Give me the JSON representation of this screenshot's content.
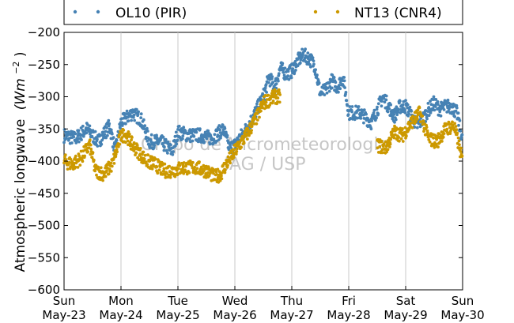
{
  "chart_data": {
    "type": "scatter",
    "ylabel": "Atmospheric longwave",
    "ylabel_unit": "(Wm",
    "ylabel_unit_exp": "−2",
    "ylabel_unit_close": ")",
    "ylim": [
      -600,
      -200
    ],
    "yticks": [
      -600,
      -550,
      -500,
      -450,
      -400,
      -350,
      -300,
      -250,
      -200
    ],
    "ytick_labels": [
      "−600",
      "−550",
      "−500",
      "−450",
      "−400",
      "−350",
      "−300",
      "−250",
      "−200"
    ],
    "xlim": [
      0,
      7
    ],
    "xticks": [
      {
        "x": 0,
        "day": "Sun",
        "date": "May-23"
      },
      {
        "x": 1,
        "day": "Mon",
        "date": "May-24"
      },
      {
        "x": 2,
        "day": "Tue",
        "date": "May-25"
      },
      {
        "x": 3,
        "day": "Wed",
        "date": "May-26"
      },
      {
        "x": 4,
        "day": "Thu",
        "date": "May-27"
      },
      {
        "x": 5,
        "day": "Fri",
        "date": "May-28"
      },
      {
        "x": 6,
        "day": "Sat",
        "date": "May-29"
      },
      {
        "x": 7,
        "day": "Sun",
        "date": "May-30"
      }
    ],
    "grid": "vertical",
    "legend_position": "top",
    "watermark": [
      "Grupo de Micrometeorologia",
      "IAG / USP"
    ],
    "series": [
      {
        "name": "OL10 (PIR)",
        "color": "#4682b4",
        "x": [
          0.0,
          0.2,
          0.4,
          0.6,
          0.8,
          0.9,
          1.0,
          1.2,
          1.35,
          1.5,
          1.7,
          1.9,
          2.0,
          2.2,
          2.4,
          2.6,
          2.8,
          2.9,
          3.0,
          3.2,
          3.3,
          3.5,
          3.6,
          3.7,
          3.8,
          3.9,
          4.0,
          4.1,
          4.2,
          4.3,
          4.4,
          4.5,
          4.6,
          4.7,
          4.8,
          4.9,
          5.0,
          5.2,
          5.4,
          5.6,
          5.8,
          5.9,
          6.0,
          6.2,
          6.3,
          6.4,
          6.5,
          6.6,
          6.7,
          6.8,
          6.9,
          7.0
        ],
        "y": [
          -360,
          -365,
          -350,
          -370,
          -345,
          -385,
          -340,
          -325,
          -335,
          -370,
          -370,
          -385,
          -355,
          -360,
          -360,
          -365,
          -350,
          -380,
          -375,
          -350,
          -335,
          -300,
          -270,
          -285,
          -255,
          -265,
          -260,
          -245,
          -235,
          -240,
          -250,
          -295,
          -290,
          -275,
          -285,
          -270,
          -325,
          -325,
          -340,
          -300,
          -330,
          -315,
          -315,
          -345,
          -335,
          -320,
          -310,
          -320,
          -315,
          -315,
          -325,
          -370
        ]
      },
      {
        "name": "NT13 (CNR4)",
        "color": "#cc9900",
        "x": [
          0.0,
          0.15,
          0.3,
          0.45,
          0.55,
          0.7,
          0.85,
          1.0,
          1.1,
          1.2,
          1.3,
          1.45,
          1.6,
          1.75,
          1.9,
          2.1,
          2.3,
          2.5,
          2.65,
          2.75,
          2.85,
          3.0,
          3.2,
          3.3,
          3.4,
          3.5,
          3.6,
          3.7,
          3.8,
          5.5,
          5.65,
          5.8,
          5.95,
          6.1,
          6.25,
          6.4,
          6.55,
          6.7,
          6.85,
          7.0
        ],
        "y": [
          -400,
          -405,
          -395,
          -375,
          -415,
          -420,
          -405,
          -360,
          -360,
          -375,
          -385,
          -400,
          -405,
          -415,
          -415,
          -410,
          -410,
          -415,
          -425,
          -420,
          -405,
          -385,
          -360,
          -345,
          -330,
          -310,
          -305,
          -300,
          -300,
          -375,
          -380,
          -355,
          -360,
          -340,
          -325,
          -365,
          -370,
          -350,
          -345,
          -400
        ]
      }
    ]
  }
}
